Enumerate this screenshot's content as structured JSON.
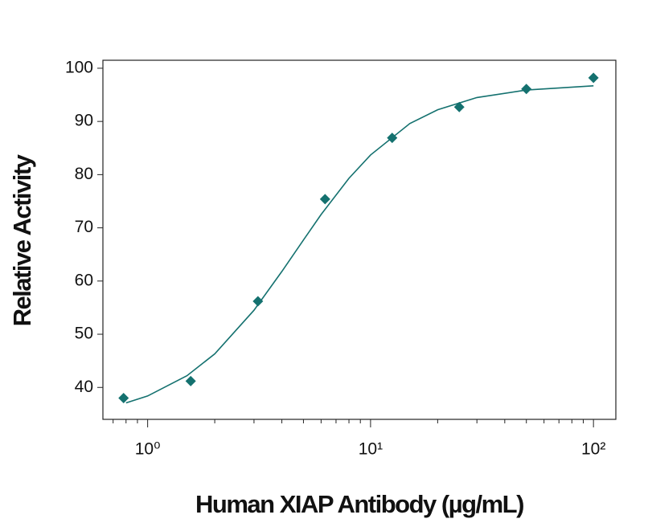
{
  "chart_data": {
    "type": "scatter",
    "x_label": "Human XIAP Antibody (µg/mL)",
    "y_label": "Relative Activity",
    "x_scale": "log",
    "color": "#14716f",
    "x": [
      0.78,
      1.56,
      3.125,
      6.25,
      12.5,
      25,
      50,
      100
    ],
    "values": [
      38.0,
      41.2,
      56.2,
      75.4,
      86.9,
      92.7,
      96.1,
      98.2
    ],
    "fit": {
      "x": [
        0.8,
        1,
        1.5,
        2,
        3,
        4,
        5,
        6,
        8,
        10,
        15,
        20,
        30,
        50,
        100
      ],
      "values": [
        37.1,
        38.4,
        42.2,
        46.3,
        54.5,
        61.8,
        67.7,
        72.5,
        79.3,
        83.7,
        89.6,
        92.2,
        94.5,
        95.9,
        96.7
      ]
    },
    "xlim": [
      0.63,
      126
    ],
    "ylim": [
      34,
      101.5
    ],
    "xticks": [
      {
        "value": 1,
        "label": "10⁰"
      },
      {
        "value": 10,
        "label": "10¹"
      },
      {
        "value": 100,
        "label": "10²"
      }
    ],
    "xminorticks": [
      0.7,
      0.8,
      0.9,
      2,
      3,
      4,
      5,
      6,
      7,
      8,
      9,
      20,
      30,
      40,
      50,
      60,
      70,
      80,
      90
    ],
    "yticks": [
      40,
      50,
      60,
      70,
      80,
      90,
      100
    ]
  }
}
